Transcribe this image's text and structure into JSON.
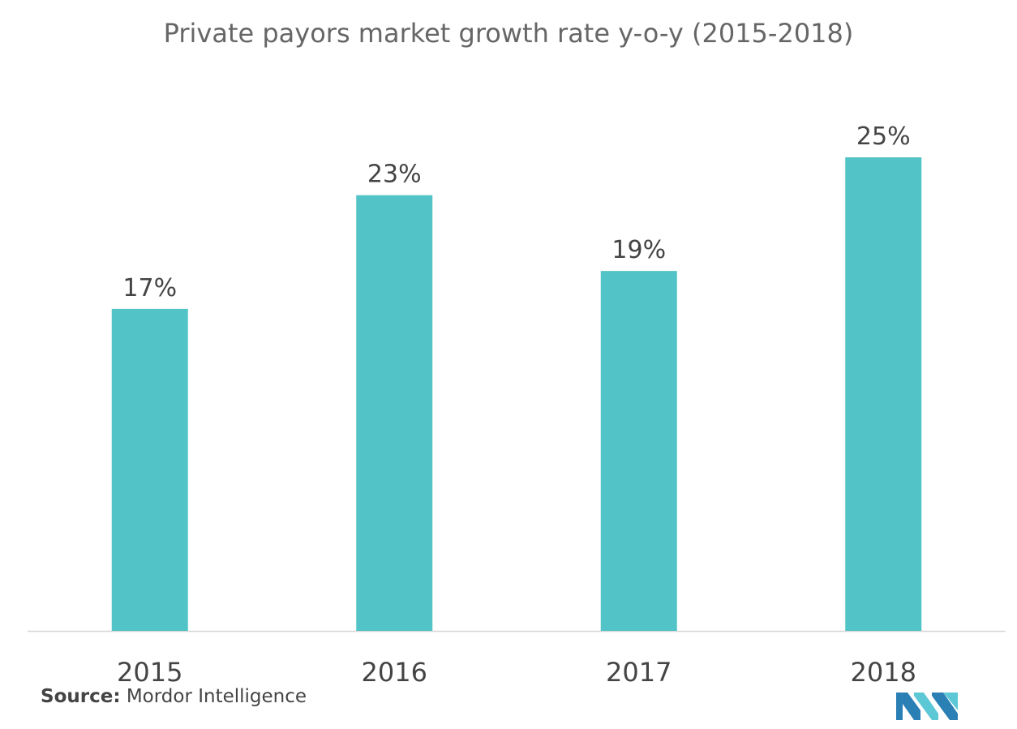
{
  "chart_data": {
    "type": "bar",
    "title": "Private payors market growth rate y-o-y (2015-2018)",
    "categories": [
      "2015",
      "2016",
      "2017",
      "2018"
    ],
    "values": [
      17,
      23,
      19,
      25
    ],
    "value_labels": [
      "17%",
      "23%",
      "19%",
      "25%"
    ],
    "unit": "%",
    "ylim": [
      0,
      25
    ],
    "xlabel": "",
    "ylabel": "",
    "grid": false,
    "legend": "none",
    "bar_color": "#52c3c6"
  },
  "source": {
    "label": "Source:",
    "text": "Mordor Intelligence"
  },
  "logo": {
    "name": "mordor-intelligence-logo",
    "colors": [
      "#2a7fb5",
      "#5cc8d6"
    ]
  }
}
